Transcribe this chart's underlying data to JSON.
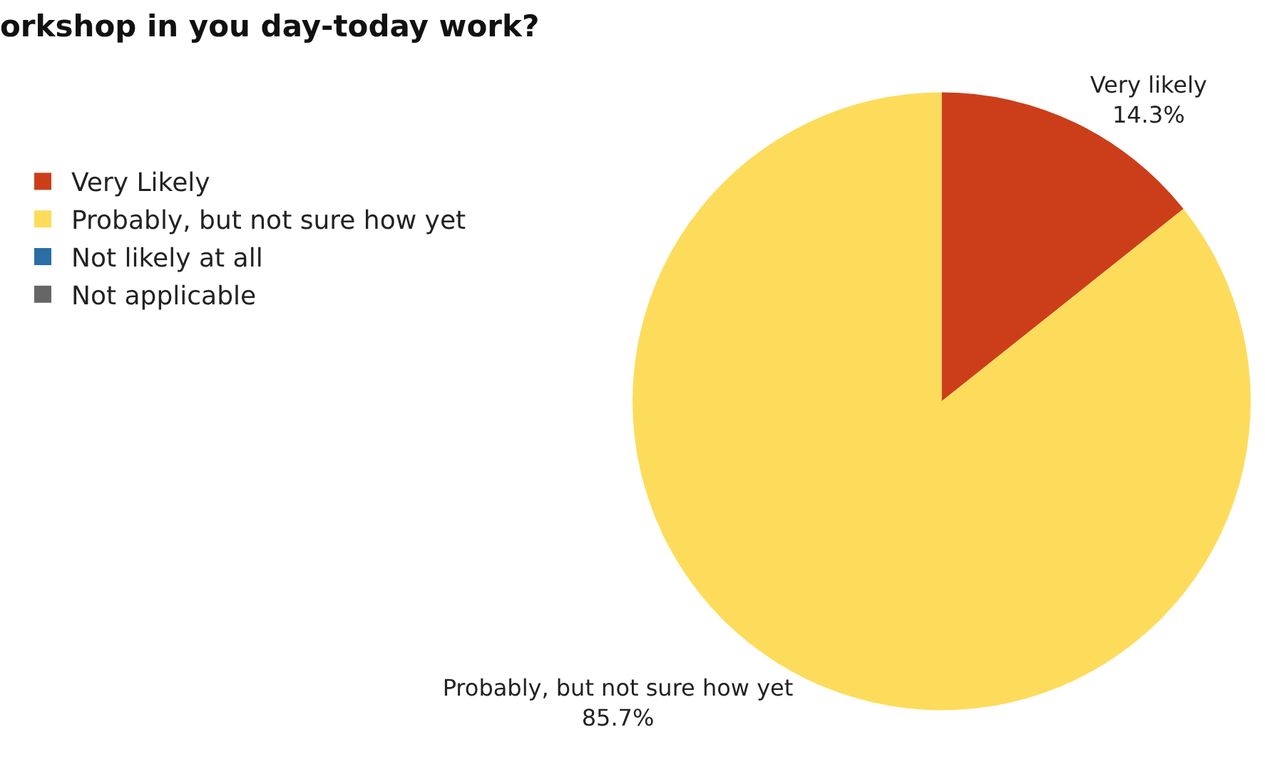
{
  "chart_data": {
    "type": "pie",
    "title": "orkshop in you day-today work?",
    "categories": [
      "Very Likely",
      "Probably, but not sure how yet",
      "Not likely at all",
      "Not applicable"
    ],
    "values": [
      14.3,
      85.7,
      0,
      0
    ],
    "colors": [
      "#cc3e1a",
      "#fddc5c",
      "#2a6ea6",
      "#666666"
    ],
    "value_labels": [
      "Very likely\n14.3%",
      "Probably, but not sure how yet\n85.7%",
      null,
      null
    ],
    "legend": "top left"
  }
}
